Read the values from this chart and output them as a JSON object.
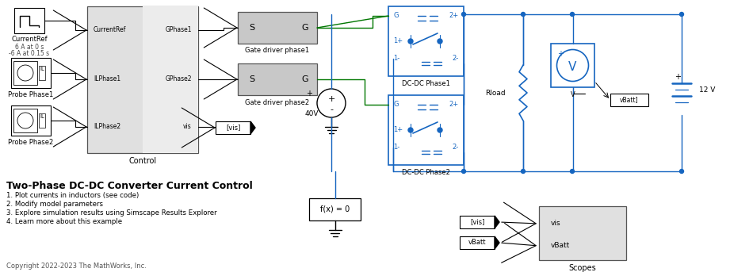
{
  "title": "Two-Phase DC-DC Converter Current Control",
  "subtitle_lines": [
    "1. Plot currents in inductors (see code)",
    "2. Modify model parameters",
    "3. Explore simulation results using Simscape Results Explorer",
    "4. Learn more about this example"
  ],
  "copyright": "Copyright 2022-2023 The MathWorks, Inc.",
  "bg_color": "#ffffff",
  "blue": "#1565c0",
  "green": "#007700",
  "black": "#000000",
  "gray_light": "#e0e0e0",
  "gray_mid": "#c8c8c8"
}
